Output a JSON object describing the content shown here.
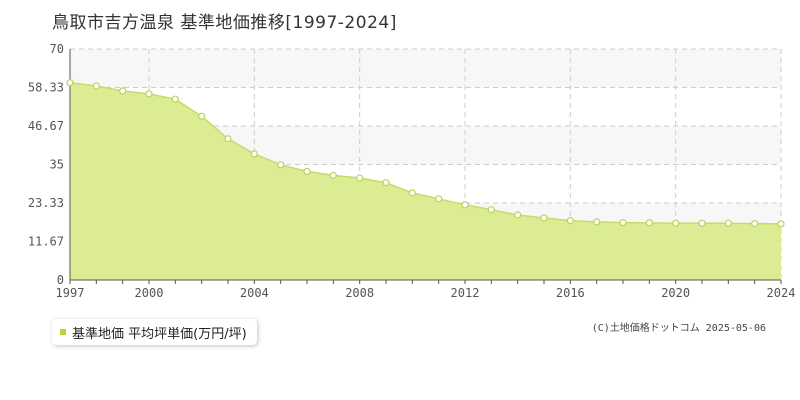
{
  "title": "鳥取市吉方温泉 基準地価推移[1997-2024]",
  "legend": {
    "label": "基準地価 平均坪単価(万円/坪)"
  },
  "copyright": "(C)土地価格ドットコム 2025-05-06",
  "colors": {
    "fill": "#dcec93",
    "line": "#c3dc6a",
    "marker_fill": "#ffffff",
    "marker_stroke": "#b9d35c",
    "grid": "#cccccc",
    "band": "#f7f7f7",
    "axis": "#555555",
    "legend_swatch": "#b7d33f"
  },
  "chart_data": {
    "type": "area",
    "title": "鳥取市吉方温泉 基準地価推移[1997-2024]",
    "xlabel": "",
    "ylabel": "",
    "xlim": [
      1997,
      2024
    ],
    "ylim": [
      0,
      70
    ],
    "x_ticks": [
      1997,
      2000,
      2004,
      2008,
      2012,
      2016,
      2020,
      2024
    ],
    "y_ticks": [
      "0",
      "11.67",
      "23.33",
      "35",
      "46.67",
      "58.33",
      "70"
    ],
    "grid": true,
    "legend_position": "bottom-left",
    "x": [
      1997,
      1998,
      1999,
      2000,
      2001,
      2002,
      2003,
      2004,
      2005,
      2006,
      2007,
      2008,
      2009,
      2010,
      2011,
      2012,
      2013,
      2014,
      2015,
      2016,
      2017,
      2018,
      2019,
      2020,
      2021,
      2022,
      2023,
      2024
    ],
    "series": [
      {
        "name": "基準地価 平均坪単価(万円/坪)",
        "values": [
          59.8,
          58.8,
          57.3,
          56.4,
          54.8,
          49.6,
          42.8,
          38.2,
          34.9,
          32.9,
          31.7,
          30.9,
          29.5,
          26.4,
          24.6,
          22.8,
          21.3,
          19.7,
          18.8,
          18.0,
          17.6,
          17.4,
          17.3,
          17.2,
          17.2,
          17.2,
          17.1,
          17.0
        ]
      }
    ]
  }
}
